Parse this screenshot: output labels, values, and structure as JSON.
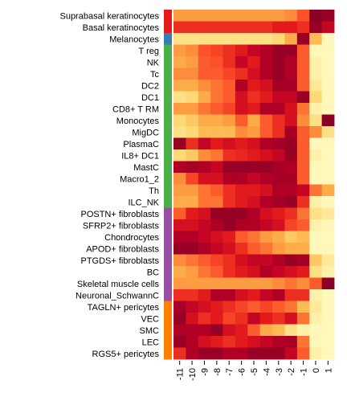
{
  "chart_data": {
    "type": "heatmap",
    "rows": [
      "Suprabasal keratinocytes",
      "Basal keratinocytes",
      "Melanocytes",
      "T reg",
      "NK",
      "Tc",
      "DC2",
      "DC1",
      "CD8+ T RM",
      "Monocytes",
      "MigDC",
      "PlasmaC",
      "IL8+ DC1",
      "MastC",
      "Macro1_2",
      "Th",
      "ILC_NK",
      "POSTN+ fibroblasts",
      "SFRP2+ fibroblasts",
      "Chondrocytes",
      "APOD+ fibroblasts",
      "PTGDS+ fibroblasts",
      "BC",
      "Skeletal muscle cells",
      "Neuronal_SchwannC",
      "TAGLN+ pericytes",
      "VEC",
      "SMC",
      "LEC",
      "RGS5+ pericytes"
    ],
    "columns": [
      "-11",
      "-10",
      "-9",
      "-8",
      "-7",
      "-6",
      "-5",
      "-4",
      "-3",
      "-2",
      "-1",
      "0",
      "1"
    ],
    "row_groups": [
      {
        "color": "#e41a1c",
        "count": 2
      },
      {
        "color": "#377eb8",
        "count": 1
      },
      {
        "color": "#4daf4a",
        "count": 14
      },
      {
        "color": "#984ea3",
        "count": 8
      },
      {
        "color": "#ff7f00",
        "count": 5
      }
    ],
    "values": [
      [
        0.45,
        0.45,
        0.45,
        0.45,
        0.45,
        0.45,
        0.45,
        0.45,
        0.45,
        0.5,
        0.62,
        0.98,
        0.95
      ],
      [
        0.7,
        0.7,
        0.7,
        0.7,
        0.7,
        0.7,
        0.7,
        0.7,
        0.75,
        0.75,
        0.7,
        0.95,
        0.85
      ],
      [
        0.2,
        0.2,
        0.2,
        0.2,
        0.2,
        0.2,
        0.2,
        0.2,
        0.25,
        0.4,
        0.95,
        0.35,
        0.05
      ],
      [
        0.45,
        0.5,
        0.62,
        0.65,
        0.7,
        0.75,
        0.85,
        0.9,
        0.95,
        0.95,
        0.6,
        0.05,
        0.05
      ],
      [
        0.4,
        0.45,
        0.6,
        0.62,
        0.7,
        0.85,
        0.75,
        0.9,
        0.95,
        0.9,
        0.6,
        0.1,
        0.05
      ],
      [
        0.5,
        0.5,
        0.6,
        0.6,
        0.65,
        0.7,
        0.8,
        0.9,
        0.95,
        0.9,
        0.6,
        0.1,
        0.05
      ],
      [
        0.4,
        0.4,
        0.5,
        0.55,
        0.6,
        0.9,
        0.75,
        0.8,
        0.92,
        0.92,
        0.6,
        0.15,
        0.05
      ],
      [
        0.2,
        0.25,
        0.4,
        0.55,
        0.6,
        0.8,
        0.7,
        0.75,
        0.85,
        0.85,
        0.95,
        0.25,
        0.05
      ],
      [
        0.45,
        0.45,
        0.55,
        0.6,
        0.65,
        0.8,
        0.75,
        0.9,
        0.9,
        0.8,
        0.55,
        0.1,
        0.05
      ],
      [
        0.25,
        0.3,
        0.4,
        0.4,
        0.45,
        0.6,
        0.4,
        0.6,
        0.7,
        0.8,
        0.5,
        0.2,
        0.98
      ],
      [
        0.2,
        0.25,
        0.35,
        0.35,
        0.35,
        0.5,
        0.45,
        0.6,
        0.7,
        0.92,
        0.6,
        0.5,
        0.2
      ],
      [
        0.95,
        0.7,
        0.85,
        0.75,
        0.8,
        0.75,
        0.8,
        0.9,
        0.92,
        0.95,
        0.6,
        0.05,
        0.05
      ],
      [
        0.25,
        0.3,
        0.5,
        0.55,
        0.7,
        0.72,
        0.75,
        0.8,
        0.85,
        0.95,
        0.6,
        0.1,
        0.05
      ],
      [
        0.9,
        0.92,
        0.9,
        0.85,
        0.95,
        0.95,
        0.95,
        0.95,
        0.92,
        0.9,
        0.6,
        0.05,
        0.05
      ],
      [
        0.5,
        0.65,
        0.8,
        0.8,
        0.9,
        0.9,
        0.85,
        0.9,
        0.92,
        0.92,
        0.6,
        0.05,
        0.05
      ],
      [
        0.45,
        0.45,
        0.55,
        0.6,
        0.7,
        0.75,
        0.75,
        0.8,
        0.9,
        0.9,
        0.85,
        0.55,
        0.4
      ],
      [
        0.4,
        0.4,
        0.55,
        0.55,
        0.7,
        0.75,
        0.8,
        0.9,
        0.92,
        0.95,
        0.7,
        0.1,
        0.05
      ],
      [
        0.6,
        0.75,
        0.8,
        0.95,
        0.95,
        0.95,
        0.9,
        0.8,
        0.75,
        0.7,
        0.55,
        0.2,
        0.15
      ],
      [
        0.8,
        0.8,
        0.85,
        0.9,
        0.95,
        0.9,
        0.9,
        0.85,
        0.8,
        0.65,
        0.6,
        0.1,
        0.05
      ],
      [
        0.9,
        0.9,
        0.85,
        0.8,
        0.75,
        0.6,
        0.55,
        0.45,
        0.4,
        0.3,
        0.35,
        0.05,
        0.05
      ],
      [
        0.95,
        0.95,
        0.9,
        0.85,
        0.8,
        0.7,
        0.6,
        0.55,
        0.45,
        0.4,
        0.4,
        0.05,
        0.05
      ],
      [
        0.5,
        0.55,
        0.6,
        0.65,
        0.7,
        0.8,
        0.85,
        0.85,
        0.9,
        0.95,
        0.92,
        0.3,
        0.15
      ],
      [
        0.4,
        0.45,
        0.55,
        0.6,
        0.7,
        0.75,
        0.8,
        0.9,
        0.85,
        0.8,
        0.75,
        0.2,
        0.1
      ],
      [
        0.45,
        0.45,
        0.45,
        0.45,
        0.45,
        0.45,
        0.45,
        0.45,
        0.5,
        0.55,
        0.5,
        0.6,
        0.98
      ],
      [
        0.7,
        0.7,
        0.75,
        0.9,
        0.9,
        0.8,
        0.75,
        0.85,
        0.9,
        0.7,
        0.7,
        0.1,
        0.05
      ],
      [
        0.92,
        0.85,
        0.8,
        0.75,
        0.7,
        0.65,
        0.6,
        0.65,
        0.6,
        0.55,
        0.35,
        0.15,
        0.05
      ],
      [
        0.95,
        0.8,
        0.7,
        0.75,
        0.65,
        0.7,
        0.85,
        0.75,
        0.7,
        0.8,
        0.55,
        0.1,
        0.05
      ],
      [
        0.9,
        0.9,
        0.9,
        0.95,
        0.8,
        0.75,
        0.6,
        0.4,
        0.35,
        0.2,
        0.1,
        0.05,
        0.05
      ],
      [
        0.95,
        0.9,
        0.8,
        0.75,
        0.7,
        0.75,
        0.8,
        0.85,
        0.9,
        0.92,
        0.55,
        0.05,
        0.05
      ],
      [
        0.7,
        0.9,
        0.95,
        0.95,
        0.9,
        0.9,
        0.95,
        0.95,
        0.95,
        0.85,
        0.6,
        0.1,
        0.05
      ]
    ],
    "colormap": [
      "#FFFFCC",
      "#FFEDA0",
      "#FED976",
      "#FEB24C",
      "#FD8D3C",
      "#FC4E2A",
      "#E31A1C",
      "#BD0026",
      "#800026"
    ],
    "legend": "none"
  }
}
